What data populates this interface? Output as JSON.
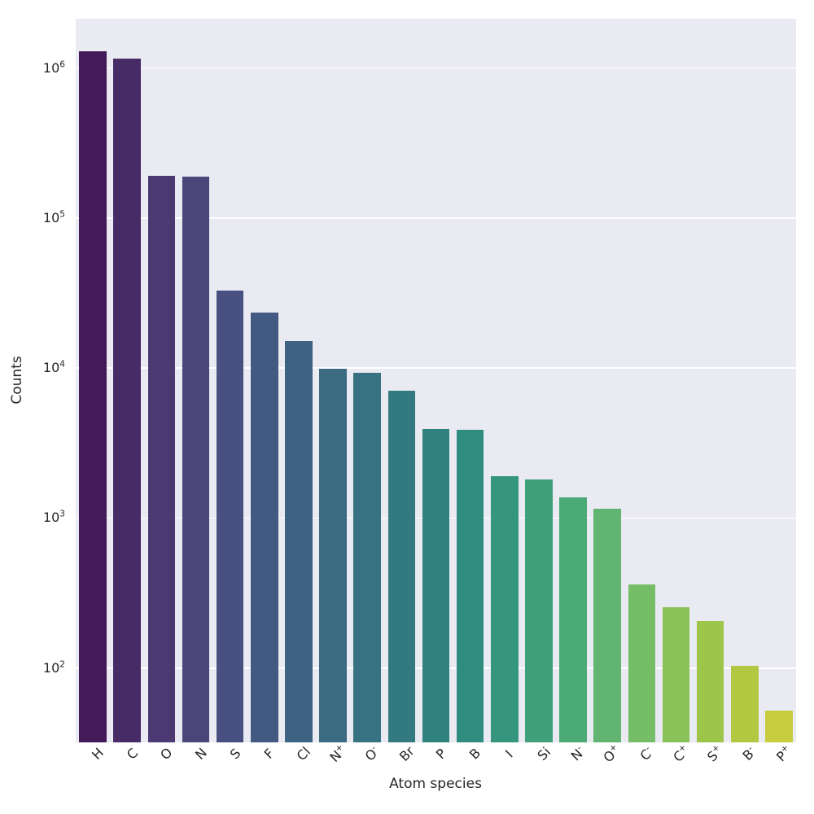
{
  "chart_data": {
    "type": "bar",
    "title": "",
    "xlabel": "Atom species",
    "ylabel": "Counts",
    "yscale": "log",
    "ylim": [
      32,
      2130000
    ],
    "grid": true,
    "legend": false,
    "palette": "viridis-desaturated",
    "categories": [
      "H",
      "C",
      "O",
      "N",
      "S",
      "F",
      "Cl",
      "N^+",
      "O^-",
      "Br",
      "P",
      "B",
      "I",
      "Si",
      "N^-",
      "O^+",
      "C^-",
      "C^+",
      "S^+",
      "B^-",
      "P^+"
    ],
    "values": [
      1300000,
      1150000,
      190000,
      188000,
      33000,
      23500,
      15200,
      9900,
      9300,
      7100,
      3950,
      3900,
      1900,
      1820,
      1370,
      1160,
      360,
      255,
      205,
      103,
      52
    ],
    "bar_colors": [
      "#431b59",
      "#472b67",
      "#4a3972",
      "#4a467a",
      "#475080",
      "#425a81",
      "#3e6382",
      "#3a6b82",
      "#367281",
      "#327980",
      "#30827f",
      "#2f8c7e",
      "#36967d",
      "#3fa07a",
      "#4caa76",
      "#62b570",
      "#75be67",
      "#88c258",
      "#9dc54a",
      "#b2c840",
      "#c8cc3f"
    ],
    "y_ticks": [
      {
        "value": 100,
        "label": "10^2"
      },
      {
        "value": 1000,
        "label": "10^3"
      },
      {
        "value": 10000,
        "label": "10^4"
      },
      {
        "value": 100000,
        "label": "10^5"
      },
      {
        "value": 1000000,
        "label": "10^6"
      }
    ],
    "colors": {
      "plot_background": "#eaeaf2",
      "gridline": "#ffffff",
      "figure_background": "#ffffff",
      "text": "#262626"
    }
  }
}
